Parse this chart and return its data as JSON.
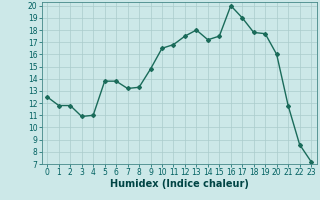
{
  "x": [
    0,
    1,
    2,
    3,
    4,
    5,
    6,
    7,
    8,
    9,
    10,
    11,
    12,
    13,
    14,
    15,
    16,
    17,
    18,
    19,
    20,
    21,
    22,
    23
  ],
  "y": [
    12.5,
    11.8,
    11.8,
    10.9,
    11.0,
    13.8,
    13.8,
    13.2,
    13.3,
    14.8,
    16.5,
    16.8,
    17.5,
    18.0,
    17.2,
    17.5,
    20.0,
    19.0,
    17.8,
    17.7,
    16.0,
    11.8,
    8.6,
    7.2
  ],
  "xlabel": "Humidex (Indice chaleur)",
  "ylim": [
    7,
    20.3
  ],
  "xlim": [
    -0.5,
    23.5
  ],
  "yticks": [
    7,
    8,
    9,
    10,
    11,
    12,
    13,
    14,
    15,
    16,
    17,
    18,
    19,
    20
  ],
  "xticks": [
    0,
    1,
    2,
    3,
    4,
    5,
    6,
    7,
    8,
    9,
    10,
    11,
    12,
    13,
    14,
    15,
    16,
    17,
    18,
    19,
    20,
    21,
    22,
    23
  ],
  "line_color": "#1a6b5a",
  "bg_color": "#cce8e8",
  "grid_color": "#aacccc",
  "marker": "D",
  "marker_size": 2.0,
  "linewidth": 1.0,
  "xlabel_fontsize": 7,
  "tick_fontsize": 5.5
}
